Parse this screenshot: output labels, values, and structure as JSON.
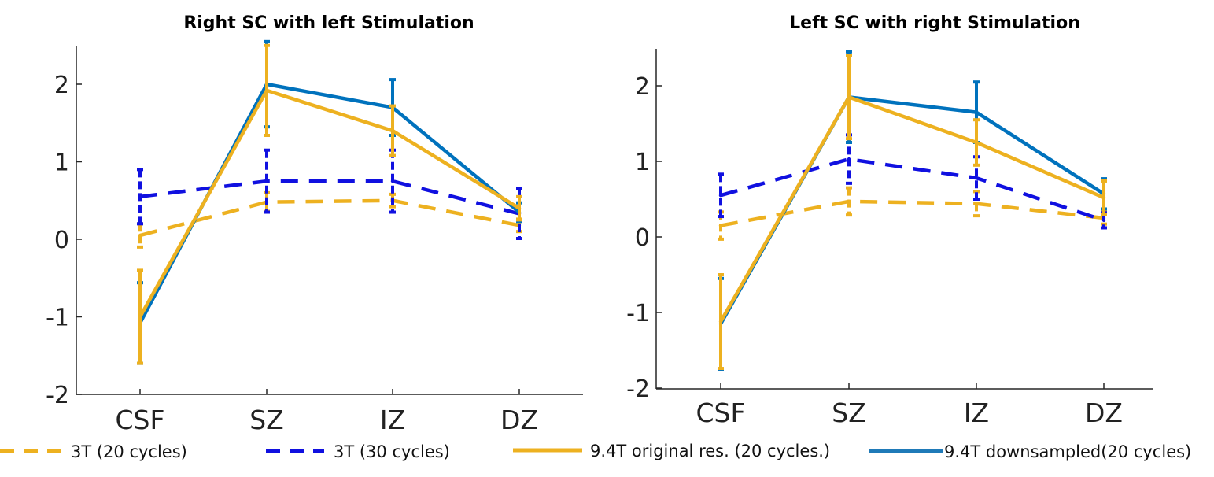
{
  "chart_data": [
    {
      "type": "line",
      "title": "Right SC with left Stimulation",
      "categories": [
        "CSF",
        "SZ",
        "IZ",
        "DZ"
      ],
      "ylim": [
        -2,
        2.5
      ],
      "yticks": [
        -2,
        -1,
        0,
        1,
        2
      ],
      "ytick_labels": [
        "-2",
        "-1",
        "0",
        "1",
        "2"
      ],
      "series": [
        {
          "name": "3T (20 cycles)",
          "values": [
            0.05,
            0.48,
            0.5,
            0.18
          ],
          "err": [
            0.15,
            0.12,
            0.08,
            0.08
          ]
        },
        {
          "name": "3T (30 cycles)",
          "values": [
            0.55,
            0.75,
            0.75,
            0.33
          ],
          "err": [
            0.35,
            0.4,
            0.4,
            0.32
          ]
        },
        {
          "name": "9.4T downsampled(20 cycles)",
          "values": [
            -1.08,
            2.0,
            1.7,
            0.35
          ],
          "err": [
            0.52,
            0.55,
            0.36,
            0.12
          ]
        },
        {
          "name": "9.4T original res. (20 cycles.)",
          "values": [
            -1.0,
            1.92,
            1.4,
            0.4
          ],
          "err": [
            0.6,
            0.58,
            0.32,
            0.15
          ]
        }
      ]
    },
    {
      "type": "line",
      "title": "Left SC with right Stimulation",
      "categories": [
        "CSF",
        "SZ",
        "IZ",
        "DZ"
      ],
      "ylim": [
        -2,
        2.5
      ],
      "yticks": [
        -2,
        -1,
        0,
        1,
        2
      ],
      "ytick_labels": [
        "-2",
        "-1",
        "0",
        "1",
        "2"
      ],
      "series": [
        {
          "name": "3T (20 cycles)",
          "values": [
            0.15,
            0.47,
            0.44,
            0.25
          ],
          "err": [
            0.18,
            0.18,
            0.16,
            0.08
          ]
        },
        {
          "name": "3T (30 cycles)",
          "values": [
            0.55,
            1.03,
            0.78,
            0.22
          ],
          "err": [
            0.28,
            0.32,
            0.28,
            0.1
          ]
        },
        {
          "name": "9.4T downsampled(20 cycles)",
          "values": [
            -1.15,
            1.85,
            1.65,
            0.57
          ],
          "err": [
            0.6,
            0.6,
            0.4,
            0.2
          ]
        },
        {
          "name": "9.4T original res. (20 cycles.)",
          "values": [
            -1.12,
            1.85,
            1.25,
            0.52
          ],
          "err": [
            0.62,
            0.55,
            0.3,
            0.22
          ]
        }
      ]
    }
  ],
  "legend": [
    {
      "label": "3T (20 cycles)",
      "color": "#EDB120",
      "style": "dashed"
    },
    {
      "label": "3T (30 cycles)",
      "color": "#1010E0",
      "style": "dashed"
    },
    {
      "label": "9.4T original res. (20 cycles.)",
      "color": "#EDB120",
      "style": "solid"
    },
    {
      "label": "9.4T downsampled(20 cycles)",
      "color": "#1F7AB8",
      "style": "solid"
    }
  ],
  "colors": {
    "3T (20 cycles)": "#EDB120",
    "3T (30 cycles)": "#1010E0",
    "9.4T downsampled(20 cycles)": "#0072BD",
    "9.4T original res. (20 cycles.)": "#EDB120"
  },
  "dashed": [
    "3T (20 cycles)",
    "3T (30 cycles)"
  ]
}
